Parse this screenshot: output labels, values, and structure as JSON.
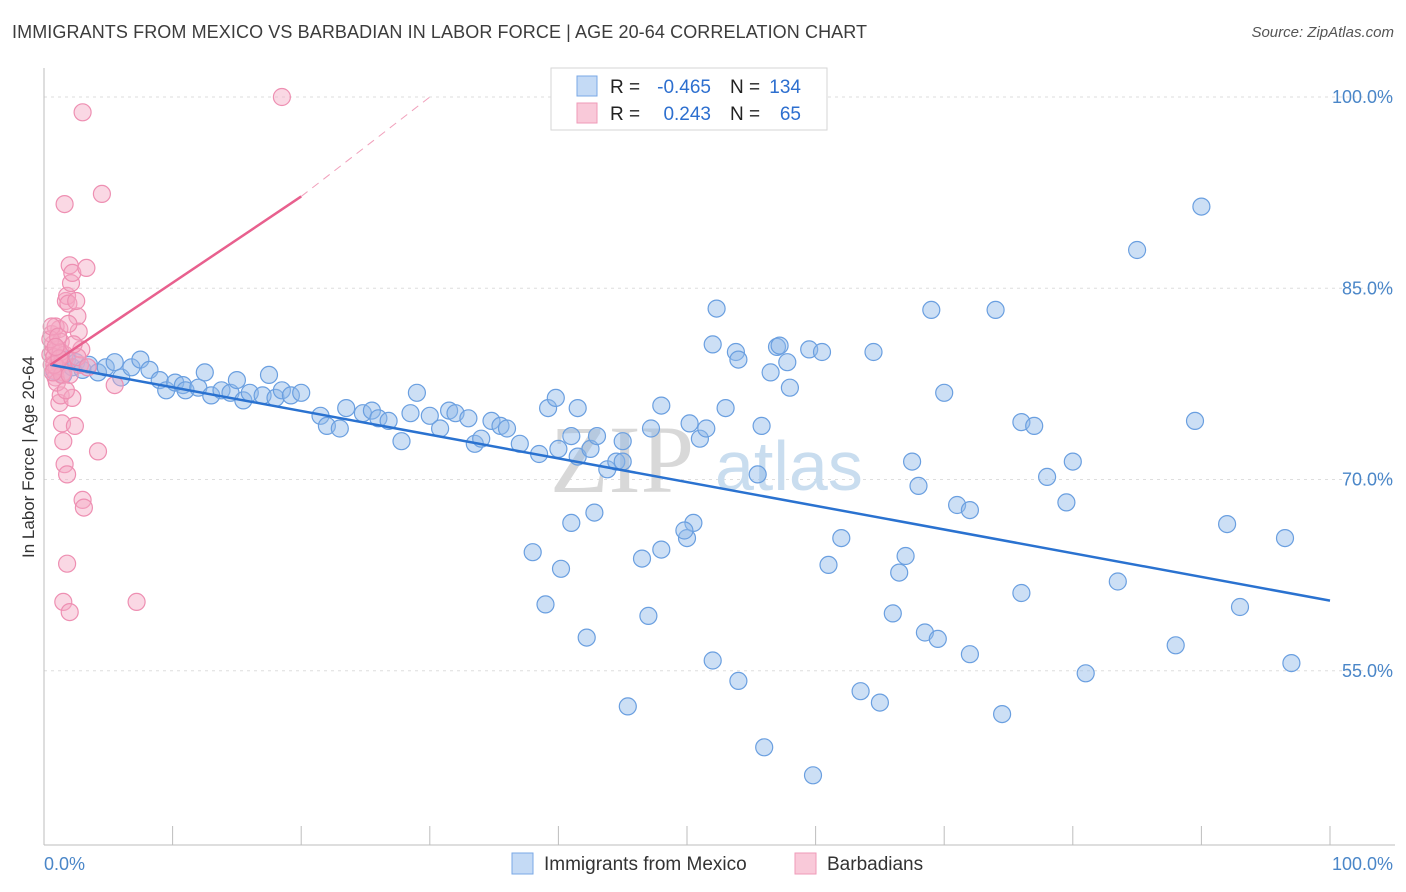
{
  "chart_data": {
    "type": "scatter",
    "title": "IMMIGRANTS FROM MEXICO VS BARBADIAN IN LABOR FORCE | AGE 20-64 CORRELATION CHART",
    "source": "Source: ZipAtlas.com",
    "ylabel": "In Labor Force | Age 20-64",
    "xlabel": "",
    "xlim": [
      0,
      100
    ],
    "ylim": [
      40,
      100
    ],
    "x_tick_labels": [
      "0.0%",
      "100.0%"
    ],
    "y_ticks": [
      {
        "value": 100,
        "label": "100.0%"
      },
      {
        "value": 85,
        "label": "85.0%"
      },
      {
        "value": 70,
        "label": "70.0%"
      },
      {
        "value": 55,
        "label": "55.0%"
      }
    ],
    "grid": true,
    "watermark": {
      "part1": "ZIP",
      "part2": "atlas"
    },
    "legend": {
      "r_label": "R =",
      "n_label": "N =",
      "entries": [
        {
          "r": "-0.465",
          "n": "134"
        },
        {
          "r": "0.243",
          "n": "65"
        }
      ]
    },
    "series": [
      {
        "name": "Immigrants from Mexico",
        "color": "#8fb8e8",
        "stroke": "#6a9fe0",
        "trend_color": "#2a72d0",
        "trend": [
          [
            0.5,
            79.0
          ],
          [
            100,
            60.5
          ]
        ],
        "points": [
          [
            0.8,
            78.5
          ],
          [
            1.2,
            79.0
          ],
          [
            1.5,
            78.2
          ],
          [
            1.8,
            79.4
          ],
          [
            2.2,
            78.8
          ],
          [
            2.5,
            79.2
          ],
          [
            3.0,
            78.6
          ],
          [
            3.5,
            79.0
          ],
          [
            4.2,
            78.4
          ],
          [
            4.8,
            78.8
          ],
          [
            5.5,
            79.2
          ],
          [
            6.0,
            78.0
          ],
          [
            6.8,
            78.8
          ],
          [
            7.5,
            79.4
          ],
          [
            8.2,
            78.6
          ],
          [
            9.0,
            77.8
          ],
          [
            9.5,
            77.0
          ],
          [
            10.2,
            77.6
          ],
          [
            10.8,
            77.4
          ],
          [
            11.0,
            77.0
          ],
          [
            12.0,
            77.2
          ],
          [
            12.5,
            78.4
          ],
          [
            13.0,
            76.6
          ],
          [
            13.8,
            77.0
          ],
          [
            14.5,
            76.8
          ],
          [
            15.0,
            77.8
          ],
          [
            15.5,
            76.2
          ],
          [
            16.0,
            76.8
          ],
          [
            17.0,
            76.6
          ],
          [
            17.5,
            78.2
          ],
          [
            18.0,
            76.4
          ],
          [
            18.5,
            77.0
          ],
          [
            19.2,
            76.6
          ],
          [
            20.0,
            76.8
          ],
          [
            21.5,
            75.0
          ],
          [
            22.0,
            74.2
          ],
          [
            23.0,
            74.0
          ],
          [
            23.5,
            75.6
          ],
          [
            24.8,
            75.2
          ],
          [
            25.5,
            75.4
          ],
          [
            26.0,
            74.8
          ],
          [
            26.8,
            74.6
          ],
          [
            27.8,
            73.0
          ],
          [
            28.5,
            75.2
          ],
          [
            29.0,
            76.8
          ],
          [
            30.0,
            75.0
          ],
          [
            30.8,
            74.0
          ],
          [
            31.5,
            75.4
          ],
          [
            32.0,
            75.2
          ],
          [
            33.0,
            74.8
          ],
          [
            33.5,
            72.8
          ],
          [
            34.0,
            73.2
          ],
          [
            34.8,
            74.6
          ],
          [
            35.5,
            74.2
          ],
          [
            36.0,
            74.0
          ],
          [
            37.0,
            72.8
          ],
          [
            38.5,
            72.0
          ],
          [
            39.2,
            75.6
          ],
          [
            40.0,
            72.4
          ],
          [
            41.0,
            73.4
          ],
          [
            41.5,
            71.8
          ],
          [
            42.5,
            72.4
          ],
          [
            43.0,
            73.4
          ],
          [
            43.8,
            70.8
          ],
          [
            44.5,
            71.4
          ],
          [
            45.0,
            71.4
          ],
          [
            39.8,
            76.4
          ],
          [
            41.5,
            75.6
          ],
          [
            42.8,
            67.4
          ],
          [
            45.0,
            73.0
          ],
          [
            46.5,
            63.8
          ],
          [
            47.0,
            59.3
          ],
          [
            48.0,
            75.8
          ],
          [
            47.2,
            74.0
          ],
          [
            50.0,
            65.4
          ],
          [
            50.5,
            66.6
          ],
          [
            51.0,
            73.2
          ],
          [
            51.5,
            74.0
          ],
          [
            49.8,
            66.0
          ],
          [
            50.2,
            74.4
          ],
          [
            52.0,
            80.6
          ],
          [
            52.3,
            83.4
          ],
          [
            53.8,
            80.0
          ],
          [
            54.0,
            79.4
          ],
          [
            55.5,
            70.4
          ],
          [
            56.5,
            78.4
          ],
          [
            57.0,
            80.4
          ],
          [
            58.0,
            77.2
          ],
          [
            53.0,
            75.6
          ],
          [
            55.8,
            74.2
          ],
          [
            57.2,
            80.5
          ],
          [
            57.8,
            79.2
          ],
          [
            59.5,
            80.2
          ],
          [
            60.5,
            80.0
          ],
          [
            61.0,
            63.3
          ],
          [
            62.0,
            65.4
          ],
          [
            64.5,
            80.0
          ],
          [
            66.0,
            59.5
          ],
          [
            67.0,
            64.0
          ],
          [
            67.5,
            71.4
          ],
          [
            68.0,
            69.5
          ],
          [
            69.0,
            83.3
          ],
          [
            70.0,
            76.8
          ],
          [
            71.0,
            68.0
          ],
          [
            72.0,
            67.6
          ],
          [
            74.0,
            83.3
          ],
          [
            76.0,
            74.5
          ],
          [
            77.0,
            74.2
          ],
          [
            78.0,
            70.2
          ],
          [
            79.5,
            68.2
          ],
          [
            80.0,
            71.4
          ],
          [
            85.0,
            88.0
          ],
          [
            88.0,
            57.0
          ],
          [
            89.5,
            74.6
          ],
          [
            90.0,
            91.4
          ],
          [
            92.0,
            66.5
          ],
          [
            93.0,
            60.0
          ],
          [
            97.0,
            55.6
          ],
          [
            38.0,
            64.3
          ],
          [
            39.0,
            60.2
          ],
          [
            40.2,
            63.0
          ],
          [
            41.0,
            66.6
          ],
          [
            42.2,
            57.6
          ],
          [
            45.4,
            52.2
          ],
          [
            52.0,
            55.8
          ],
          [
            54.0,
            54.2
          ],
          [
            56.0,
            49.0
          ],
          [
            59.8,
            46.8
          ],
          [
            63.5,
            53.4
          ],
          [
            65.0,
            52.5
          ],
          [
            66.5,
            62.7
          ],
          [
            68.5,
            58.0
          ],
          [
            69.5,
            57.5
          ],
          [
            72.0,
            56.3
          ],
          [
            74.5,
            51.6
          ],
          [
            76.0,
            61.1
          ],
          [
            81.0,
            54.8
          ],
          [
            83.5,
            62.0
          ],
          [
            96.5,
            65.4
          ],
          [
            48.0,
            64.5
          ]
        ]
      },
      {
        "name": "Barbadians",
        "color": "#f5a8c3",
        "stroke": "#ee8fb2",
        "trend_color": "#e8608e",
        "trend": [
          [
            0.5,
            79.0
          ],
          [
            20,
            92.2
          ]
        ],
        "trend_dashed": [
          [
            20,
            92.2
          ],
          [
            30,
            100
          ]
        ],
        "points": [
          [
            0.5,
            79.8
          ],
          [
            0.6,
            79.0
          ],
          [
            0.7,
            80.6
          ],
          [
            0.8,
            78.6
          ],
          [
            0.9,
            78.0
          ],
          [
            1.0,
            80.2
          ],
          [
            1.1,
            79.4
          ],
          [
            0.6,
            81.4
          ],
          [
            0.7,
            80.0
          ],
          [
            0.8,
            79.6
          ],
          [
            1.2,
            81.8
          ],
          [
            1.3,
            80.8
          ],
          [
            1.4,
            79.2
          ],
          [
            1.5,
            78.4
          ],
          [
            1.6,
            79.8
          ],
          [
            0.9,
            82.0
          ],
          [
            1.0,
            78.8
          ],
          [
            1.7,
            84.0
          ],
          [
            1.8,
            84.4
          ],
          [
            1.9,
            83.8
          ],
          [
            2.0,
            86.8
          ],
          [
            2.1,
            85.4
          ],
          [
            2.2,
            86.2
          ],
          [
            1.2,
            76.0
          ],
          [
            1.4,
            74.4
          ],
          [
            1.5,
            73.0
          ],
          [
            1.6,
            71.2
          ],
          [
            1.8,
            70.4
          ],
          [
            1.3,
            76.6
          ],
          [
            2.2,
            76.4
          ],
          [
            2.4,
            74.2
          ],
          [
            2.6,
            82.8
          ],
          [
            2.7,
            81.6
          ],
          [
            2.8,
            79.0
          ],
          [
            2.9,
            80.2
          ],
          [
            3.0,
            68.4
          ],
          [
            3.1,
            67.8
          ],
          [
            3.3,
            86.6
          ],
          [
            3.0,
            98.8
          ],
          [
            4.5,
            92.4
          ],
          [
            4.2,
            72.2
          ],
          [
            5.5,
            77.4
          ],
          [
            1.5,
            60.4
          ],
          [
            1.8,
            63.4
          ],
          [
            2.0,
            59.6
          ],
          [
            7.2,
            60.4
          ],
          [
            18.5,
            100.0
          ],
          [
            1.6,
            91.6
          ],
          [
            2.5,
            84.0
          ],
          [
            1.0,
            77.6
          ],
          [
            1.3,
            80.0
          ],
          [
            1.4,
            78.2
          ],
          [
            0.5,
            81.0
          ],
          [
            0.6,
            82.0
          ],
          [
            2.6,
            79.6
          ],
          [
            3.4,
            78.8
          ],
          [
            0.8,
            79.0
          ],
          [
            1.1,
            81.2
          ],
          [
            1.9,
            82.2
          ],
          [
            2.0,
            78.2
          ],
          [
            1.7,
            77.0
          ],
          [
            1.2,
            79.5
          ],
          [
            0.9,
            80.4
          ],
          [
            2.3,
            80.6
          ],
          [
            0.7,
            78.4
          ]
        ]
      }
    ]
  }
}
